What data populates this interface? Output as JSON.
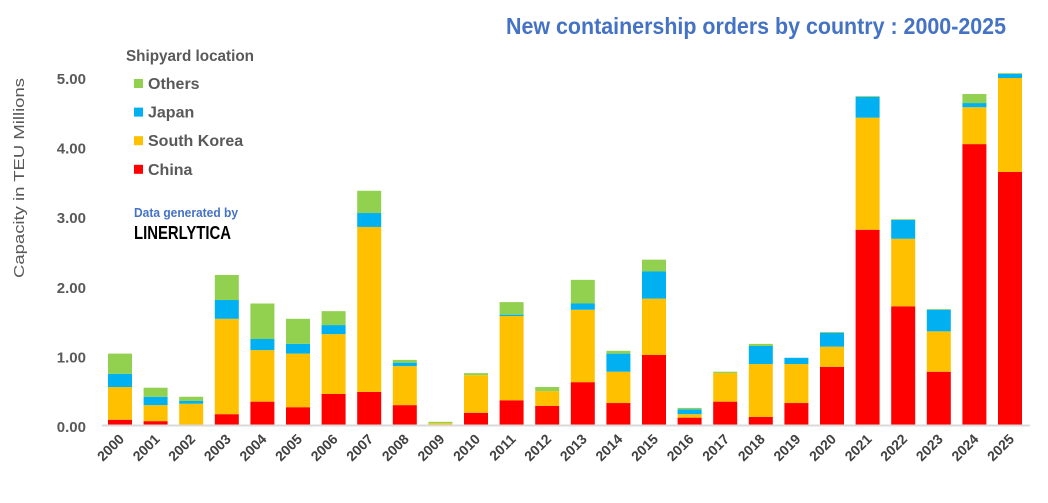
{
  "chart_data": {
    "type": "bar",
    "stacked": true,
    "title": "New containership orders by country : 2000-2025",
    "xlabel": "",
    "ylabel": "Capacity in TEU Millions",
    "ylim": [
      0,
      5.2
    ],
    "yticks": [
      "0.00",
      "1.00",
      "2.00",
      "3.00",
      "4.00",
      "5.00"
    ],
    "grid": false,
    "legend": {
      "title": "Shipyard location",
      "placement": "top-left"
    },
    "annotation": {
      "line1": "Data generated by",
      "line2": "LINERLYTICA"
    },
    "categories": [
      "2000",
      "2001",
      "2002",
      "2003",
      "2004",
      "2005",
      "2006",
      "2007",
      "2008",
      "2009",
      "2010",
      "2011",
      "2012",
      "2013",
      "2014",
      "2015",
      "2016",
      "2017",
      "2018",
      "2019",
      "2020",
      "2021",
      "2022",
      "2023",
      "2024",
      "2025"
    ],
    "series": [
      {
        "name": "China",
        "color": "#FF0000",
        "values": [
          0.09,
          0.07,
          0.0,
          0.17,
          0.35,
          0.27,
          0.46,
          0.49,
          0.3,
          0.0,
          0.19,
          0.37,
          0.29,
          0.63,
          0.33,
          1.02,
          0.12,
          0.35,
          0.13,
          0.33,
          0.85,
          2.82,
          1.72,
          0.78,
          4.05,
          3.65
        ]
      },
      {
        "name": "South Korea",
        "color": "#FFC000",
        "values": [
          0.47,
          0.23,
          0.32,
          1.37,
          0.74,
          0.77,
          0.86,
          2.37,
          0.56,
          0.04,
          0.54,
          1.21,
          0.21,
          1.04,
          0.45,
          0.81,
          0.05,
          0.41,
          0.76,
          0.56,
          0.29,
          1.61,
          0.97,
          0.58,
          0.53,
          1.35
        ]
      },
      {
        "name": "Japan",
        "color": "#00B0F0",
        "values": [
          0.19,
          0.12,
          0.04,
          0.27,
          0.16,
          0.14,
          0.13,
          0.2,
          0.05,
          0.0,
          0.0,
          0.02,
          0.0,
          0.09,
          0.26,
          0.39,
          0.07,
          0.0,
          0.26,
          0.09,
          0.2,
          0.3,
          0.27,
          0.31,
          0.06,
          0.06
        ]
      },
      {
        "name": "Others",
        "color": "#92D050",
        "values": [
          0.29,
          0.13,
          0.06,
          0.36,
          0.51,
          0.36,
          0.2,
          0.32,
          0.04,
          0.02,
          0.03,
          0.18,
          0.06,
          0.34,
          0.04,
          0.17,
          0.02,
          0.02,
          0.03,
          0.0,
          0.01,
          0.01,
          0.01,
          0.01,
          0.13,
          0.01
        ]
      }
    ],
    "colors": {
      "title": "#4472C4",
      "annotation": "#4472C4",
      "axis": "#D9D9D9"
    }
  }
}
